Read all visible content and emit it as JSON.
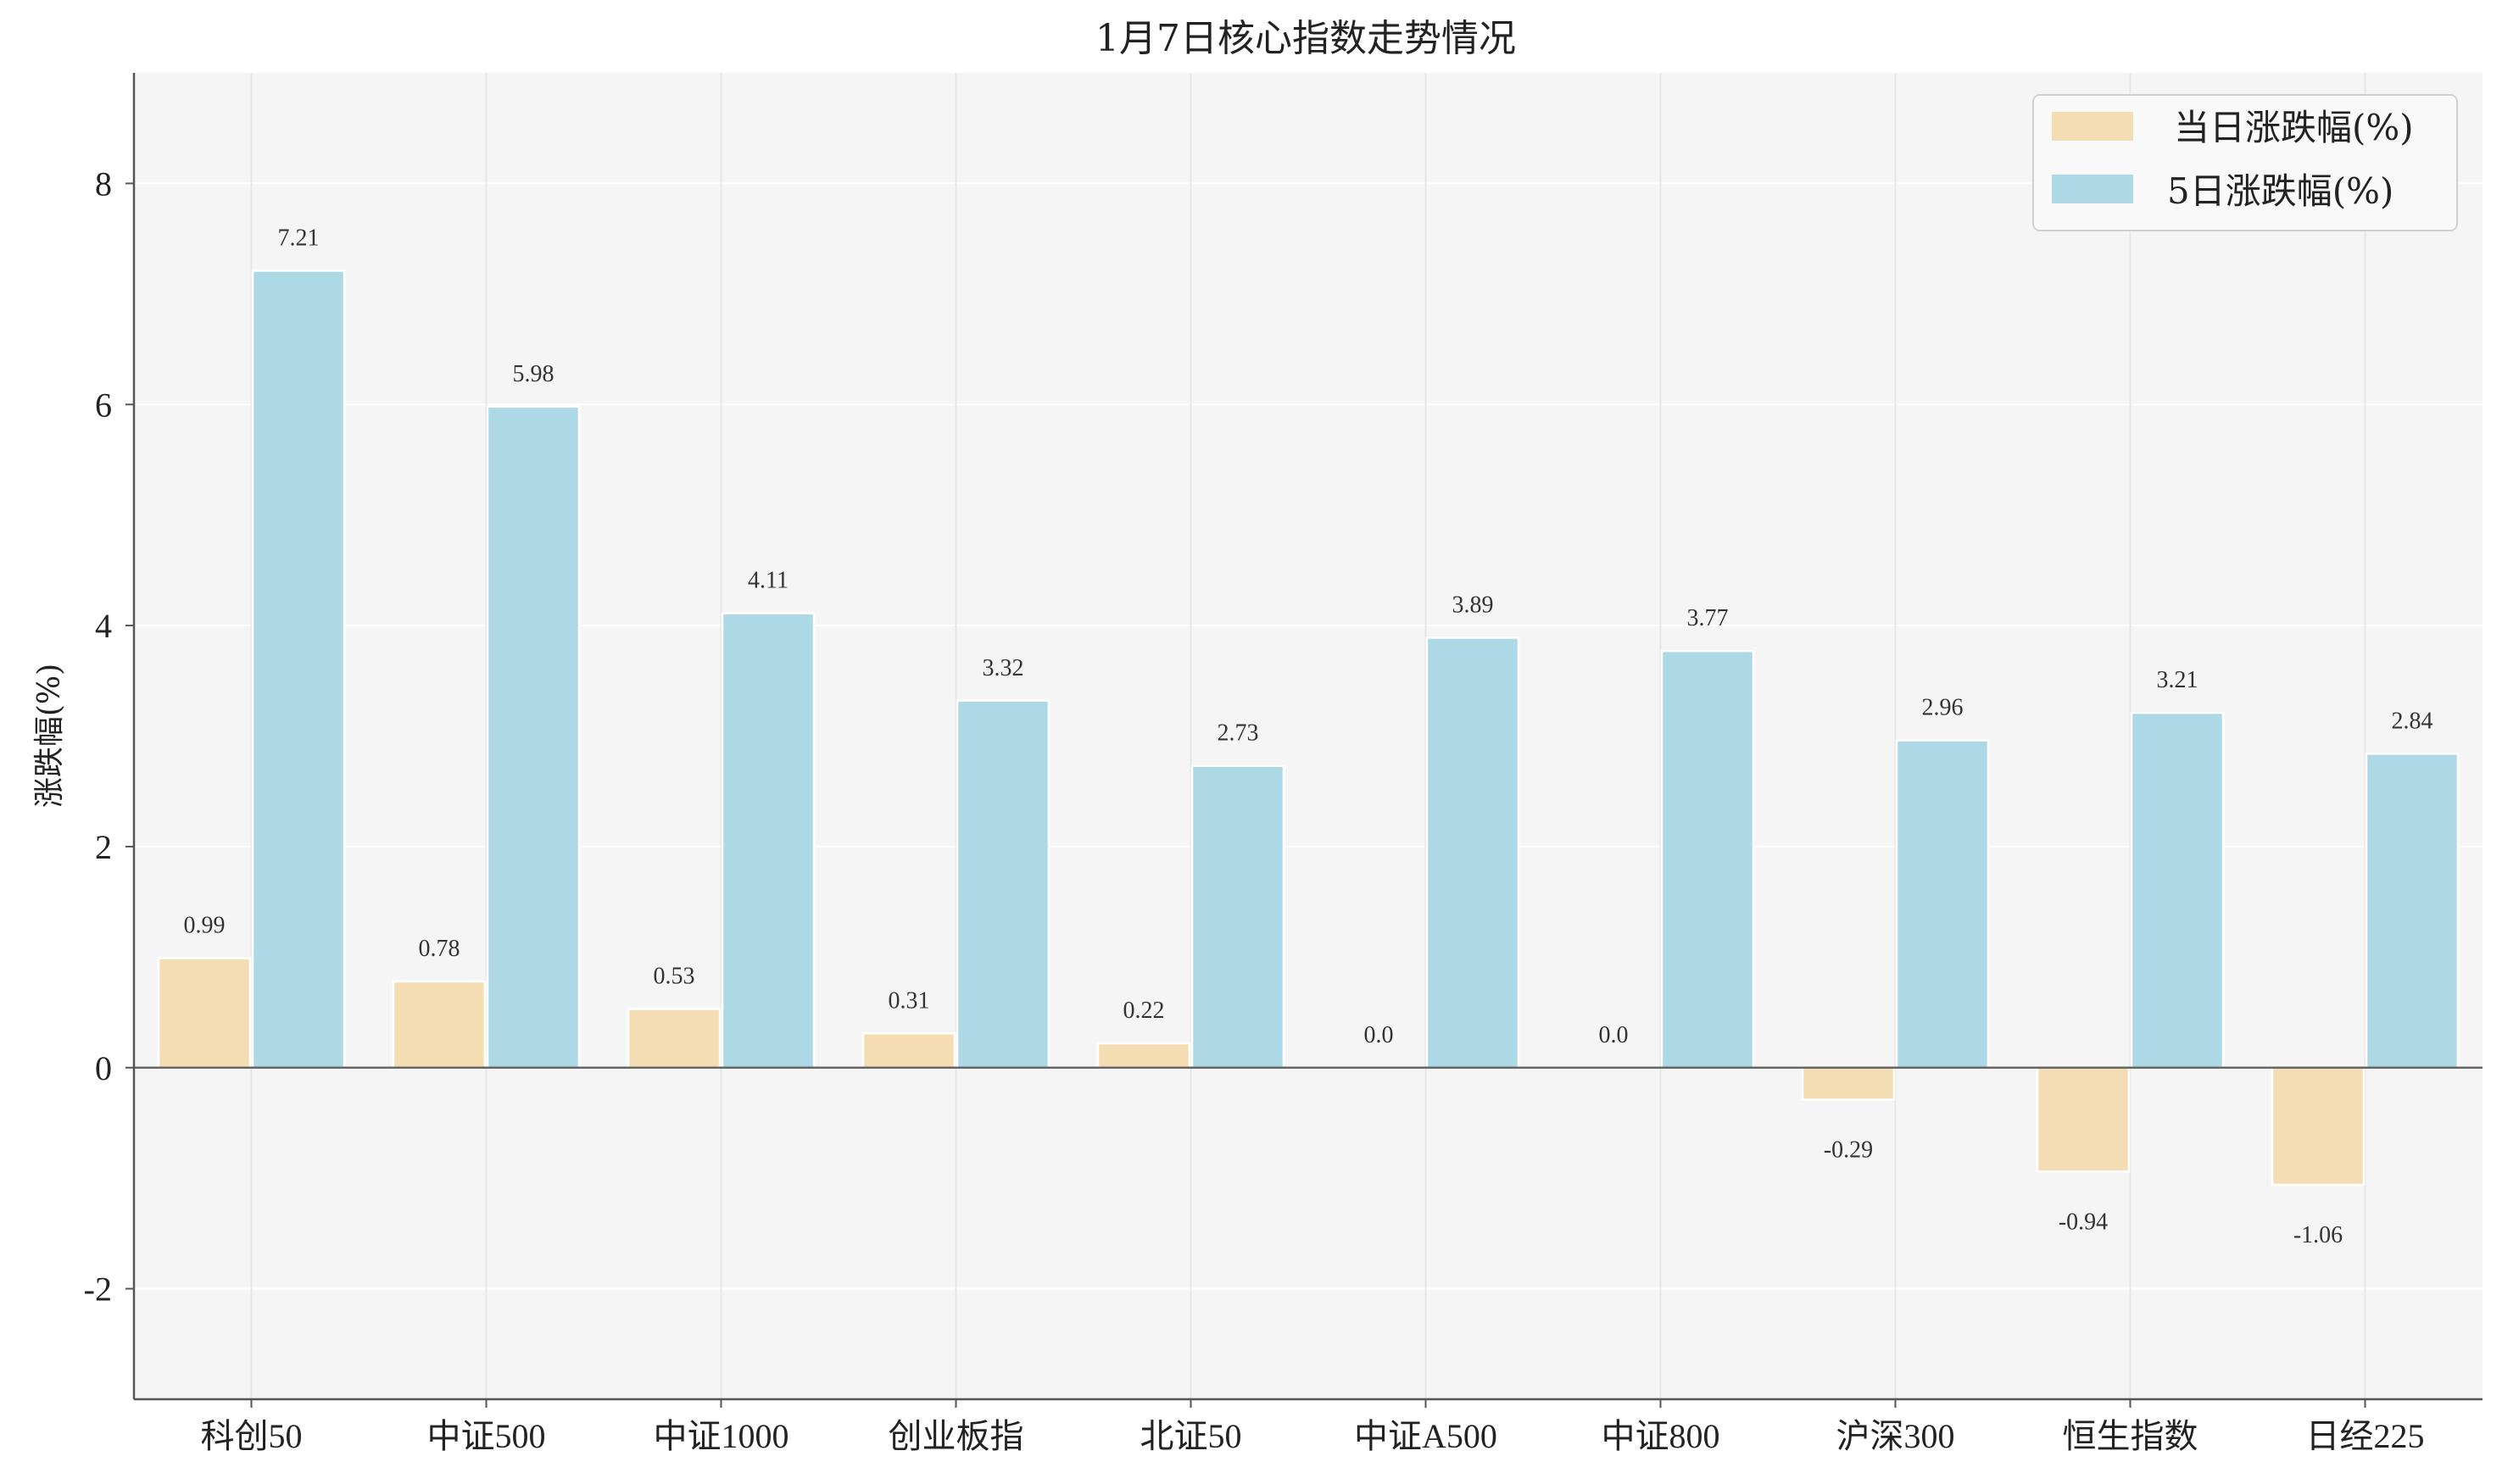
{
  "chart_data": {
    "type": "bar",
    "title": "1月7日核心指数走势情况",
    "xlabel": "",
    "ylabel": "涨跌幅(%)",
    "ylim": [
      -3,
      9
    ],
    "yticks": [
      -2,
      0,
      2,
      4,
      6,
      8
    ],
    "grid": true,
    "legend_position": "top-right",
    "categories": [
      "科创50",
      "中证500",
      "中证1000",
      "创业板指",
      "北证50",
      "中证A500",
      "中证800",
      "沪深300",
      "恒生指数",
      "日经225"
    ],
    "series": [
      {
        "name": "当日涨跌幅(%)",
        "color": "#F5DDB3",
        "values": [
          0.99,
          0.78,
          0.53,
          0.31,
          0.22,
          0.0,
          0.0,
          -0.29,
          -0.94,
          -1.06
        ]
      },
      {
        "name": "5日涨跌幅(%)",
        "color": "#ADD8E6",
        "values": [
          7.21,
          5.98,
          4.11,
          3.32,
          2.73,
          3.89,
          3.77,
          2.96,
          3.21,
          2.84
        ]
      }
    ]
  }
}
